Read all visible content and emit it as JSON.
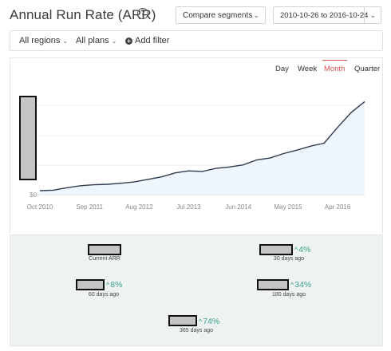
{
  "header": {
    "title": "Annual Run Rate (ARR)",
    "help_icon": "?",
    "compare_label": "Compare segments",
    "compare_chevron": "⌄",
    "date_range": "2010-10-26 to 2016-10-24",
    "date_chevron": "⌄"
  },
  "filters": {
    "regions_label": "All regions",
    "plans_label": "All plans",
    "add_filter_label": "Add filter",
    "chevron": "⌄",
    "plus": "+"
  },
  "tabs": {
    "day": "Day",
    "week": "Week",
    "month": "Month",
    "quarter": "Quarter",
    "active": "month",
    "active_color": "#d9534f"
  },
  "chart_data": {
    "type": "area",
    "y_tick_labels": [
      "$0"
    ],
    "x_tick_labels": [
      "Oct 2010",
      "Sep 2011",
      "Aug 2012",
      "Jul 2013",
      "Jun 2014",
      "May 2015",
      "Apr 2016"
    ],
    "x_tick_dates": [
      "2010-10",
      "2011-09",
      "2012-08",
      "2013-07",
      "2014-06",
      "2015-05",
      "2016-04"
    ],
    "grid": true,
    "line_color": "#2f3b4c",
    "fill_color": "#eef5fd",
    "series": [
      {
        "x": [
          "2010-10",
          "2011-01",
          "2011-04",
          "2011-07",
          "2011-10",
          "2012-01",
          "2012-04",
          "2012-07",
          "2012-10",
          "2013-01",
          "2013-04",
          "2013-07",
          "2013-10",
          "2014-01",
          "2014-04",
          "2014-07",
          "2014-10",
          "2015-01",
          "2015-04",
          "2015-07",
          "2015-10",
          "2016-01",
          "2016-04",
          "2016-07",
          "2016-10"
        ],
        "y": [
          0.04,
          0.045,
          0.07,
          0.09,
          0.1,
          0.105,
          0.115,
          0.13,
          0.155,
          0.18,
          0.22,
          0.24,
          0.235,
          0.265,
          0.28,
          0.3,
          0.35,
          0.37,
          0.415,
          0.45,
          0.49,
          0.52,
          0.68,
          0.83,
          0.94
        ]
      }
    ]
  },
  "stats": [
    {
      "id": "current",
      "label": "Current ARR",
      "change": ""
    },
    {
      "id": "30d",
      "label": "30 days ago",
      "change": "4%"
    },
    {
      "id": "60d",
      "label": "60 days ago",
      "change": "8%"
    },
    {
      "id": "180d",
      "label": "180 days ago",
      "change": "34%"
    },
    {
      "id": "365d",
      "label": "365 days ago",
      "change": "74%"
    }
  ],
  "stat_caret": "^",
  "accent_color": "#3aa08e"
}
